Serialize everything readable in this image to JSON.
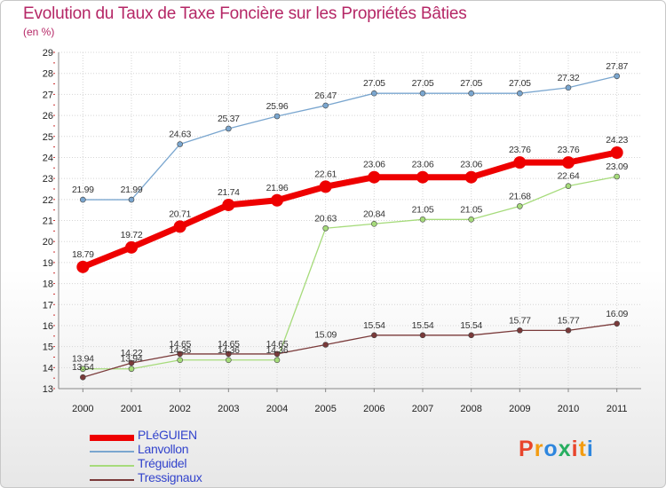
{
  "title": "Evolution du Taux de Taxe Foncière sur les Propriétés Bâties",
  "subtitle": "(en %)",
  "logo": {
    "letters": [
      "P",
      "r",
      "o",
      "x",
      "i",
      "t",
      "i"
    ],
    "colors": [
      "#e8452c",
      "#f39c12",
      "#2e86de",
      "#27ae60",
      "#e8452c",
      "#f39c12",
      "#2e86de"
    ]
  },
  "chart_data": {
    "type": "line",
    "title": "Evolution du Taux de Taxe Foncière sur les Propriétés Bâties",
    "ylabel": "(en %)",
    "xlabel": "",
    "x": [
      "2000",
      "2001",
      "2002",
      "2003",
      "2004",
      "2005",
      "2006",
      "2007",
      "2008",
      "2009",
      "2010",
      "2011"
    ],
    "ylim": [
      13,
      29
    ],
    "yticks": [
      13,
      14,
      15,
      16,
      17,
      18,
      19,
      20,
      21,
      22,
      23,
      24,
      25,
      26,
      27,
      28,
      29
    ],
    "grid": true,
    "legend_position": "bottom-left",
    "series": [
      {
        "name": "PLéGUIEN",
        "color": "#ee0000",
        "width": 7,
        "marker": 7,
        "values": [
          18.79,
          19.72,
          20.71,
          21.74,
          21.96,
          22.61,
          23.06,
          23.06,
          23.06,
          23.76,
          23.76,
          24.23
        ],
        "labels": [
          "18.79",
          "19.72",
          "20.71",
          "21.74",
          "21.96",
          "22.61",
          "23.06",
          "23.06",
          "23.06",
          "23.76",
          "23.76",
          "24.23"
        ]
      },
      {
        "name": "Lanvollon",
        "color": "#7aa6cf",
        "width": 1.3,
        "marker": 3,
        "values": [
          21.99,
          21.99,
          24.63,
          25.37,
          25.96,
          26.47,
          27.05,
          27.05,
          27.05,
          27.05,
          27.32,
          27.87
        ],
        "labels": [
          "21.99",
          "21.99",
          "24.63",
          "25.37",
          "25.96",
          "26.47",
          "27.05",
          "27.05",
          "27.05",
          "27.05",
          "27.32",
          "27.87"
        ]
      },
      {
        "name": "Tréguidel",
        "color": "#a6db7b",
        "width": 1.3,
        "marker": 3,
        "values": [
          13.94,
          13.94,
          14.36,
          14.36,
          14.36,
          20.63,
          20.84,
          21.05,
          21.05,
          21.68,
          22.64,
          23.09
        ],
        "labels": [
          "13.94",
          "13.94",
          "14.36",
          "14.36",
          "14.36",
          "20.63",
          "20.84",
          "21.05",
          "21.05",
          "21.68",
          "22.64",
          "23.09"
        ]
      },
      {
        "name": "Tressignaux",
        "color": "#7a3a3a",
        "width": 1.3,
        "marker": 3,
        "values": [
          13.54,
          14.22,
          14.65,
          14.65,
          14.65,
          15.09,
          15.54,
          15.54,
          15.54,
          15.77,
          15.77,
          16.09
        ],
        "labels": [
          "13.54",
          "14.22",
          "14.65",
          "14.65",
          "14.65",
          "15.09",
          "15.54",
          "15.54",
          "15.54",
          "15.77",
          "15.77",
          "16.09"
        ]
      }
    ]
  }
}
